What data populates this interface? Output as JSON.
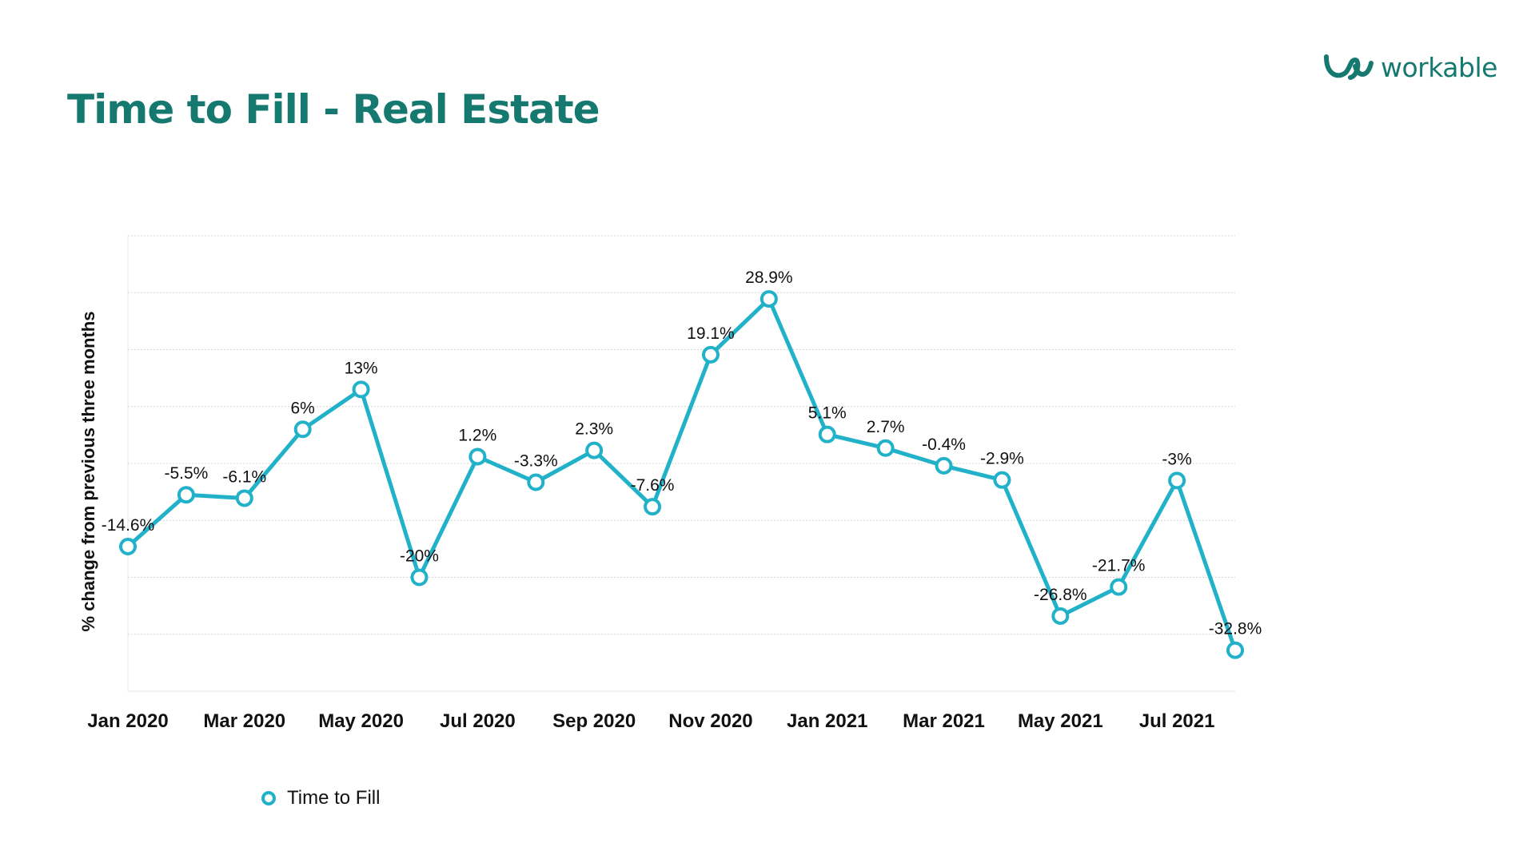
{
  "header": {
    "title": "Time to Fill - Real Estate",
    "logo_text": "workable"
  },
  "colors": {
    "title": "#16796f",
    "series": "#21b2c9",
    "grid": "#d4d4d4"
  },
  "chart_data": {
    "type": "line",
    "title": "Time to Fill - Real Estate",
    "ylabel": "% change from previous three months",
    "xlabel": "",
    "x": [
      "Jan 2020",
      "Feb 2020",
      "Mar 2020",
      "Apr 2020",
      "May 2020",
      "Jun 2020",
      "Jul 2020",
      "Aug 2020",
      "Sep 2020",
      "Oct 2020",
      "Nov 2020",
      "Dec 2020",
      "Jan 2021",
      "Feb 2021",
      "Mar 2021",
      "Apr 2021",
      "May 2021",
      "Jun 2021",
      "Jul 2021",
      "Aug 2021"
    ],
    "x_tick_labels": [
      "Jan 2020",
      "Mar 2020",
      "May 2020",
      "Jul 2020",
      "Sep 2020",
      "Nov 2020",
      "Jan 2021",
      "Mar 2021",
      "May 2021",
      "Jul 2021"
    ],
    "series": [
      {
        "name": "Time to Fill",
        "values": [
          -14.6,
          -5.5,
          -6.1,
          6,
          13,
          -20,
          1.2,
          -3.3,
          2.3,
          -7.6,
          19.1,
          28.9,
          5.1,
          2.7,
          -0.4,
          -2.9,
          -26.8,
          -21.7,
          -3,
          -32.8
        ],
        "data_labels": [
          "-14.6%",
          "-5.5%",
          "-6.1%",
          "6%",
          "13%",
          "-20%",
          "1.2%",
          "-3.3%",
          "2.3%",
          "-7.6%",
          "19.1%",
          "28.9%",
          "5.1%",
          "2.7%",
          "-0.4%",
          "-2.9%",
          "-26.8%",
          "-21.7%",
          "-3%",
          "-32.8%"
        ]
      }
    ],
    "ylim": [
      -40,
      40
    ],
    "y_gridlines": [
      -40,
      -30,
      -20,
      -10,
      0,
      10,
      20,
      30,
      40
    ],
    "y_tick_labels_shown": false,
    "grid": true,
    "legend": "bottom-left"
  }
}
